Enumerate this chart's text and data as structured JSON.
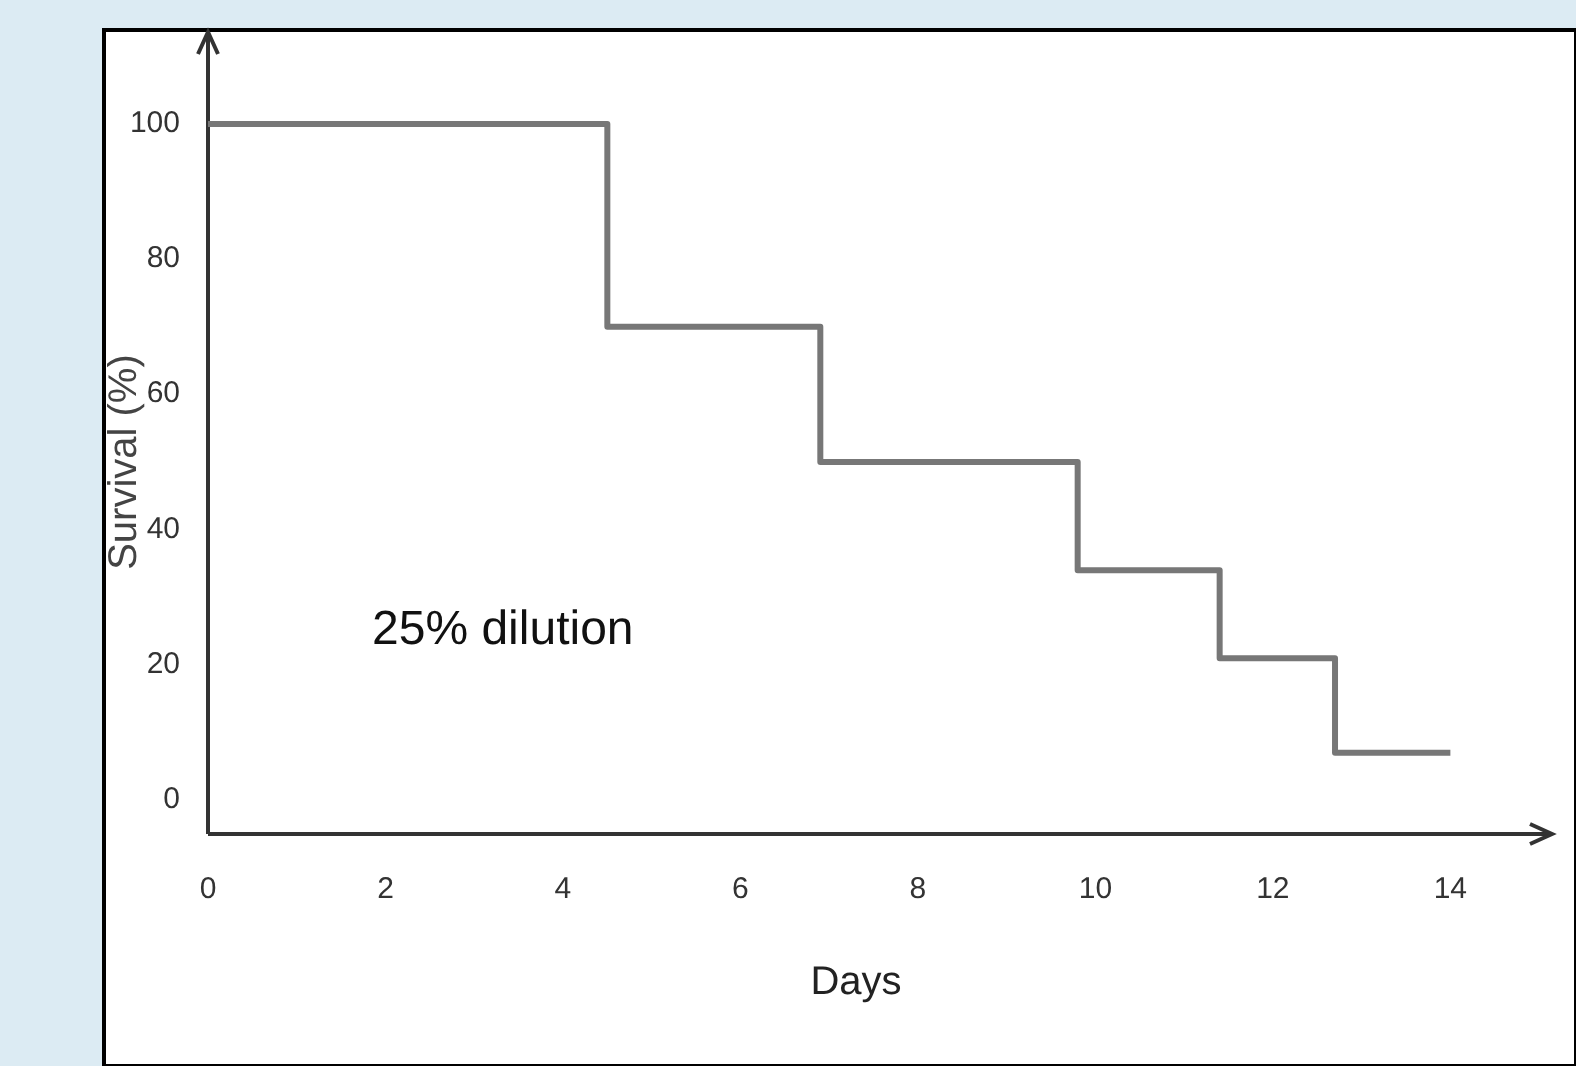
{
  "chart_data": {
    "type": "step",
    "xlabel": "Days",
    "ylabel": "Survival (%)",
    "x": [
      0,
      4.5,
      6.9,
      9.8,
      11.4,
      12.7,
      14
    ],
    "series": [
      {
        "color": "#777777",
        "values": [
          100,
          70,
          50,
          34,
          21,
          7,
          7
        ]
      }
    ],
    "xlim": [
      0,
      15.1
    ],
    "xticks": [
      0,
      2,
      4,
      6,
      8,
      10,
      12,
      14
    ],
    "ylim": [
      -5,
      113
    ],
    "yticks": [
      0,
      20,
      40,
      60,
      80,
      100
    ],
    "annotations": [
      "25% dilution"
    ],
    "grid": false
  }
}
